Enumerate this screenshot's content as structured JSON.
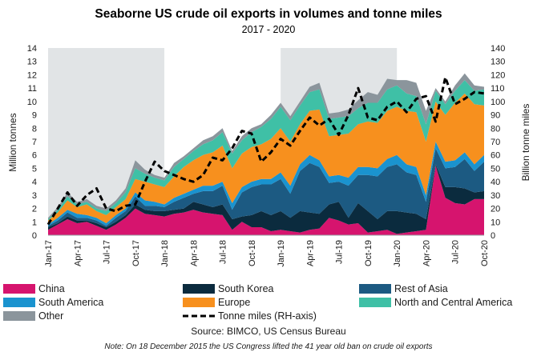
{
  "chart_data": {
    "type": "area",
    "title": "Seaborne US crude oil exports in volumes and tonne miles",
    "subtitle": "2017 - 2020",
    "ylabel": "Million tonnes",
    "y2label": "Billion tonne miles",
    "ylim": [
      0,
      14
    ],
    "y2lim": [
      0,
      140
    ],
    "yticks": [
      0,
      1,
      2,
      3,
      4,
      5,
      6,
      7,
      8,
      9,
      10,
      11,
      12,
      13,
      14
    ],
    "y2ticks": [
      0,
      10,
      20,
      30,
      40,
      50,
      60,
      70,
      80,
      90,
      100,
      110,
      120,
      130,
      140
    ],
    "x": [
      "Jan-17",
      "Feb-17",
      "Mar-17",
      "Apr-17",
      "May-17",
      "Jun-17",
      "Jul-17",
      "Aug-17",
      "Sep-17",
      "Oct-17",
      "Nov-17",
      "Dec-17",
      "Jan-18",
      "Feb-18",
      "Mar-18",
      "Apr-18",
      "May-18",
      "Jun-18",
      "Jul-18",
      "Aug-18",
      "Sep-18",
      "Oct-18",
      "Nov-18",
      "Dec-18",
      "Jan-19",
      "Feb-19",
      "Mar-19",
      "Apr-19",
      "May-19",
      "Jun-19",
      "Jul-19",
      "Aug-19",
      "Sep-19",
      "Oct-19",
      "Nov-19",
      "Dec-19",
      "Jan-20",
      "Feb-20",
      "Mar-20",
      "Apr-20",
      "May-20",
      "Jun-20",
      "Jul-20",
      "Aug-20",
      "Sep-20",
      "Oct-20"
    ],
    "xtick_labels": [
      "Jan-17",
      "Apr-17",
      "Jul-17",
      "Oct-17",
      "Jan-18",
      "Apr-18",
      "Jul-18",
      "Oct-18",
      "Jan-19",
      "Apr-19",
      "Jul-19",
      "Oct-19",
      "Jan-20",
      "Apr-20",
      "Jul-20",
      "Oct-20"
    ],
    "shaded_periods": [
      [
        0,
        12
      ],
      [
        24,
        36
      ]
    ],
    "grid": false,
    "legend_position": "bottom",
    "series": [
      {
        "name": "China",
        "color": "#d6146e",
        "values": [
          0.4,
          0.8,
          1.2,
          0.9,
          1.0,
          0.7,
          0.4,
          0.8,
          1.3,
          2.0,
          1.6,
          1.5,
          1.4,
          1.6,
          1.7,
          1.9,
          1.7,
          1.6,
          1.5,
          0.4,
          1.0,
          0.6,
          0.6,
          0.3,
          0.4,
          0.3,
          0.2,
          0.4,
          0.5,
          1.3,
          1.1,
          0.8,
          0.9,
          0.2,
          0.3,
          0.4,
          0.1,
          0.2,
          0.3,
          0.4,
          5.2,
          2.8,
          2.4,
          2.3,
          2.7,
          2.7
        ]
      },
      {
        "name": "South Korea",
        "color": "#0b2b3e",
        "values": [
          0.2,
          0.1,
          0.2,
          0.2,
          0.1,
          0.2,
          0.2,
          0.2,
          0.2,
          0.3,
          0.3,
          0.3,
          0.4,
          0.3,
          0.3,
          0.6,
          0.6,
          0.5,
          0.8,
          0.8,
          0.4,
          0.9,
          1.2,
          1.2,
          1.4,
          1.0,
          1.6,
          1.3,
          1.1,
          1.0,
          1.4,
          0.5,
          1.5,
          1.6,
          0.9,
          1.4,
          1.7,
          1.5,
          1.3,
          0.8,
          0.1,
          0.8,
          1.2,
          1.2,
          0.5,
          0.6
        ]
      },
      {
        "name": "Rest of Asia",
        "color": "#1c5a82",
        "values": [
          0.1,
          0.2,
          0.3,
          0.2,
          0.2,
          0.2,
          0.1,
          0.3,
          0.3,
          0.6,
          0.3,
          0.4,
          0.3,
          0.6,
          0.8,
          0.6,
          1.0,
          1.2,
          1.4,
          0.7,
          1.8,
          2.1,
          2.0,
          2.3,
          2.4,
          1.8,
          3.0,
          3.7,
          3.5,
          1.6,
          1.5,
          2.4,
          2.1,
          2.7,
          3.2,
          3.3,
          3.5,
          3.0,
          2.9,
          1.3,
          1.2,
          1.4,
          1.5,
          2.2,
          1.6,
          2.2
        ]
      },
      {
        "name": "South America",
        "color": "#1a93cf",
        "values": [
          0.1,
          0.2,
          0.2,
          0.3,
          0.2,
          0.2,
          0.2,
          0.2,
          0.2,
          0.3,
          0.4,
          0.3,
          0.2,
          0.3,
          0.3,
          0.3,
          0.4,
          0.4,
          0.3,
          0.5,
          0.4,
          0.4,
          0.4,
          0.4,
          0.5,
          0.6,
          0.5,
          0.6,
          0.5,
          0.5,
          0.5,
          0.6,
          0.6,
          0.6,
          0.6,
          0.6,
          0.7,
          0.6,
          0.6,
          0.5,
          0.5,
          0.5,
          0.5,
          0.5,
          0.5,
          0.5
        ]
      },
      {
        "name": "Europe",
        "color": "#f7901e",
        "values": [
          0.3,
          0.4,
          0.7,
          0.5,
          0.8,
          0.5,
          0.6,
          0.6,
          0.7,
          1.0,
          1.4,
          1.3,
          1.3,
          1.6,
          2.0,
          2.2,
          2.3,
          2.5,
          2.7,
          2.6,
          2.5,
          2.6,
          2.6,
          3.0,
          3.3,
          3.3,
          3.0,
          3.3,
          3.8,
          3.0,
          3.0,
          3.3,
          3.2,
          3.4,
          3.4,
          3.6,
          3.6,
          4.0,
          4.1,
          4.0,
          3.0,
          3.5,
          4.3,
          4.4,
          4.5,
          3.7
        ]
      },
      {
        "name": "North and Central America",
        "color": "#3fc0a6",
        "values": [
          0.1,
          0.2,
          0.3,
          0.2,
          0.2,
          0.2,
          0.3,
          0.3,
          0.5,
          0.8,
          0.6,
          0.5,
          0.5,
          0.7,
          0.6,
          0.7,
          0.8,
          0.9,
          1.0,
          1.1,
          1.0,
          1.1,
          1.3,
          1.5,
          1.6,
          1.6,
          1.4,
          1.4,
          1.5,
          1.3,
          1.3,
          1.3,
          1.2,
          1.4,
          1.5,
          1.6,
          1.6,
          1.3,
          1.2,
          1.3,
          0.8,
          0.8,
          0.9,
          1.0,
          1.0,
          1.2
        ]
      },
      {
        "name": "Other",
        "color": "#8b959c",
        "values": [
          0.1,
          0.2,
          0.3,
          0.2,
          0.2,
          0.2,
          0.2,
          0.2,
          0.3,
          0.6,
          0.3,
          0.2,
          0.2,
          0.3,
          0.2,
          0.2,
          0.3,
          0.3,
          0.3,
          0.2,
          0.3,
          0.3,
          0.2,
          0.3,
          0.3,
          0.3,
          0.3,
          0.4,
          0.5,
          0.4,
          0.4,
          0.5,
          0.6,
          0.8,
          0.6,
          0.8,
          0.4,
          1.0,
          1.0,
          1.0,
          0.2,
          0.2,
          0.4,
          0.5,
          0.4,
          0.2
        ]
      }
    ],
    "line_series": {
      "name": "Tonne miles (RH-axis)",
      "axis": "right",
      "color": "#000000",
      "values": [
        8,
        20,
        32,
        22,
        30,
        35,
        20,
        18,
        22,
        23,
        40,
        55,
        48,
        45,
        42,
        40,
        45,
        58,
        56,
        65,
        78,
        76,
        55,
        62,
        72,
        67,
        78,
        88,
        82,
        87,
        75,
        90,
        110,
        88,
        86,
        96,
        100,
        92,
        102,
        104,
        85,
        118,
        98,
        102,
        107,
        106
      ]
    },
    "source": "Source: BIMCO, US Census Bureau",
    "note": "Note: On 18 December 2015 the US Congress lifted the 41 year old ban on crude oil exports"
  }
}
